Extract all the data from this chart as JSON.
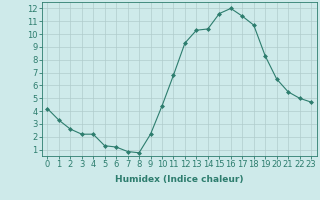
{
  "x": [
    0,
    1,
    2,
    3,
    4,
    5,
    6,
    7,
    8,
    9,
    10,
    11,
    12,
    13,
    14,
    15,
    16,
    17,
    18,
    19,
    20,
    21,
    22,
    23
  ],
  "y": [
    4.2,
    3.3,
    2.6,
    2.2,
    2.2,
    1.3,
    1.2,
    0.85,
    0.75,
    2.2,
    4.4,
    6.8,
    9.3,
    10.3,
    10.4,
    11.6,
    12.0,
    11.4,
    10.7,
    8.3,
    6.5,
    5.5,
    5.0,
    4.7
  ],
  "line_color": "#2d7d6e",
  "marker": "D",
  "marker_size": 2.0,
  "bg_color": "#ceeaea",
  "grid_color": "#b0cccc",
  "xlabel": "Humidex (Indice chaleur)",
  "xlim": [
    -0.5,
    23.5
  ],
  "ylim": [
    0.5,
    12.5
  ],
  "yticks": [
    1,
    2,
    3,
    4,
    5,
    6,
    7,
    8,
    9,
    10,
    11,
    12
  ],
  "xticks": [
    0,
    1,
    2,
    3,
    4,
    5,
    6,
    7,
    8,
    9,
    10,
    11,
    12,
    13,
    14,
    15,
    16,
    17,
    18,
    19,
    20,
    21,
    22,
    23
  ],
  "axis_color": "#2d7d6e",
  "font_color": "#2d7d6e",
  "xlabel_fontsize": 6.5,
  "tick_fontsize": 6.0,
  "linewidth": 0.8
}
